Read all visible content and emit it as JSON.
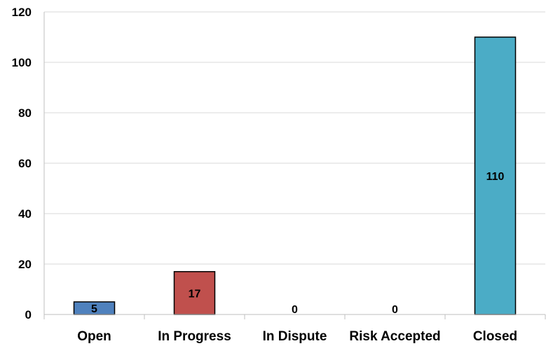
{
  "chart_data": {
    "type": "bar",
    "categories": [
      "Open",
      "In Progress",
      "In Dispute",
      "Risk Accepted",
      "Closed"
    ],
    "values": [
      5,
      17,
      0,
      0,
      110
    ],
    "colors": [
      "#4f81bd",
      "#c0504d",
      "#9bbb59",
      "#8064a2",
      "#4bacc6"
    ],
    "ylim": [
      0,
      120
    ],
    "yticks": [
      0,
      20,
      40,
      60,
      80,
      100,
      120
    ],
    "grid": true,
    "legend": "none"
  }
}
